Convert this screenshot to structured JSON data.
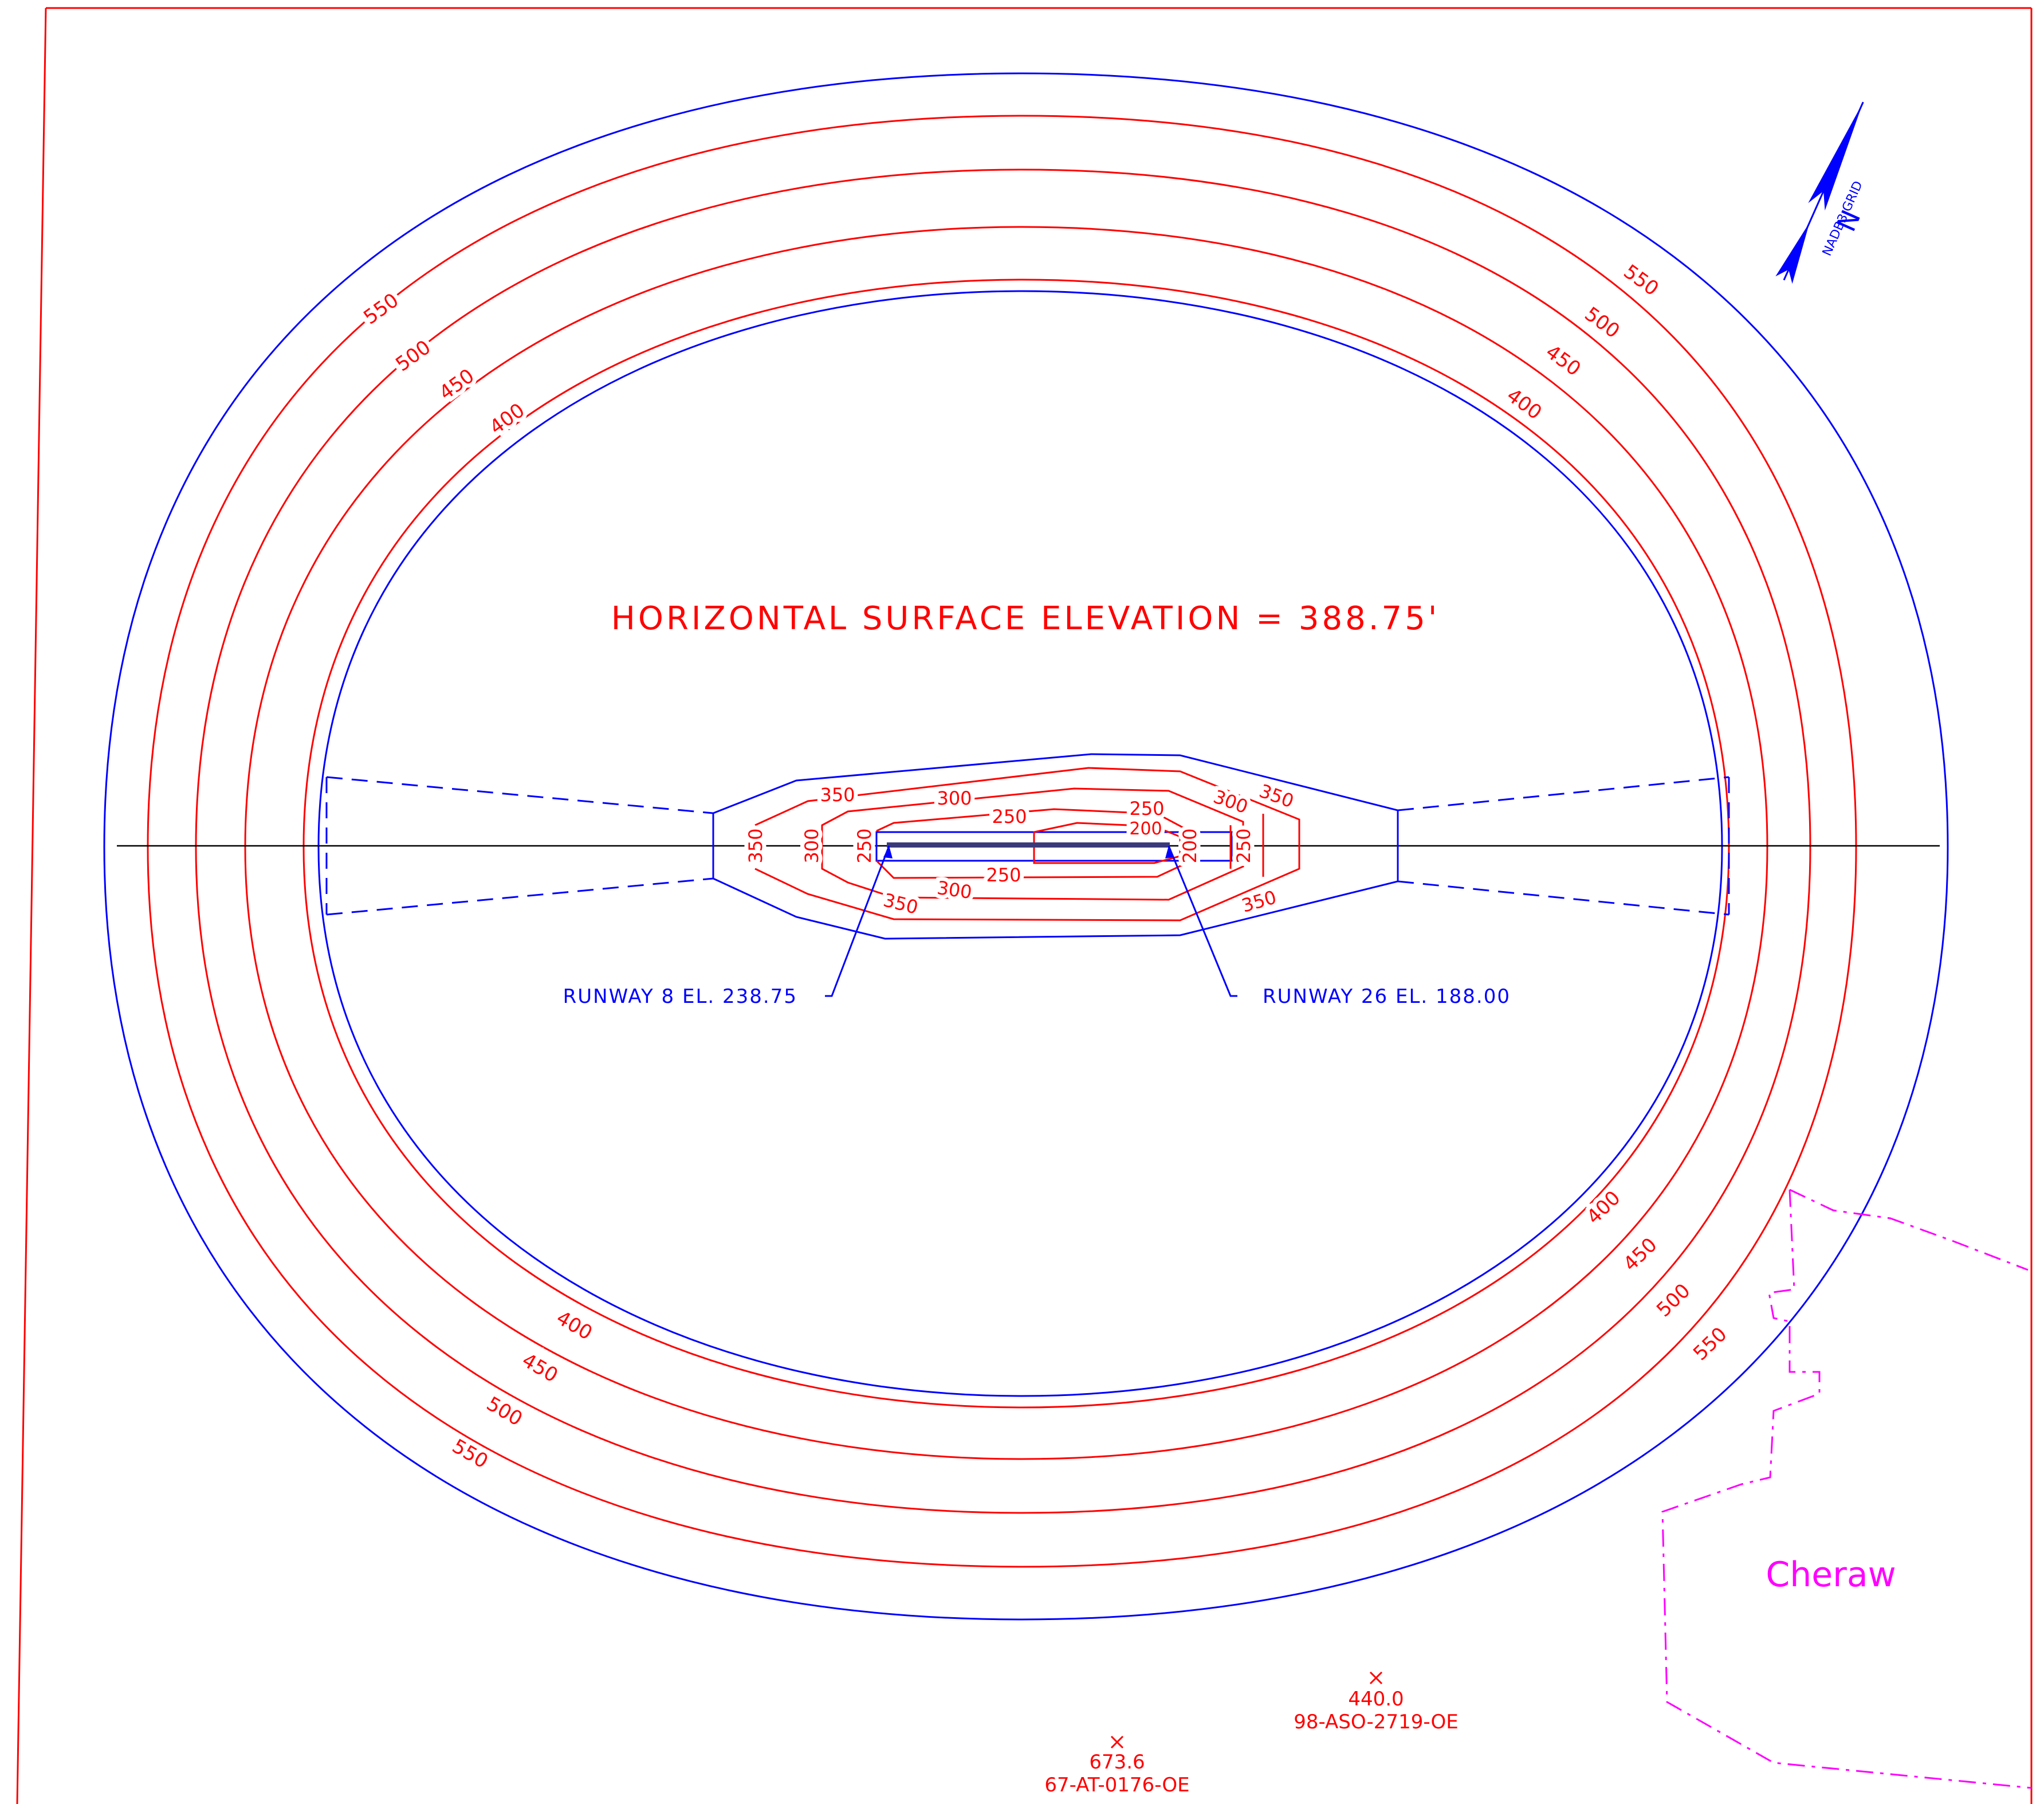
{
  "title": "HORIZONTAL SURFACE ELEVATION = 388.75'",
  "north_arrow": {
    "label": "NADB3 GRID",
    "symbol": "N",
    "icon": "north-arrow-icon"
  },
  "contours": {
    "outer": {
      "550": "550",
      "500": "500",
      "450": "450",
      "400": "400"
    },
    "approach": {
      "350": "350",
      "300": "300",
      "250": "250",
      "200": "200"
    }
  },
  "runways": {
    "rw8": "RUNWAY 8 EL. 238.75",
    "rw26": "RUNWAY 26 EL. 188.00"
  },
  "place": {
    "name": "Cheraw"
  },
  "obstructions": [
    {
      "elevation": "440.0",
      "id": "98-ASO-2719-OE"
    },
    {
      "elevation": "673.6",
      "id": "67-AT-0176-OE"
    }
  ],
  "colors": {
    "contour": "#ff0000",
    "surface": "#0000ff",
    "boundary": "#ff00ff",
    "centerline": "#000000"
  }
}
